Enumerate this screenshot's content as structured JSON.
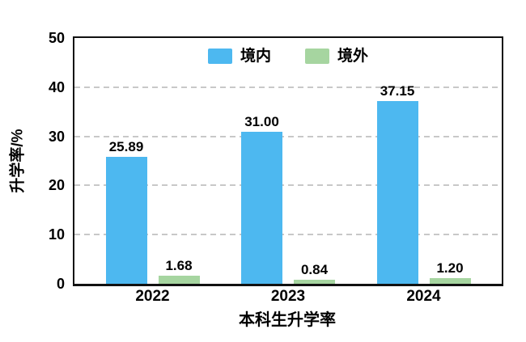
{
  "chart_data": {
    "type": "bar",
    "title": "",
    "xlabel": "本科生升学率",
    "ylabel": "升学率/%",
    "categories": [
      "2022",
      "2023",
      "2024"
    ],
    "series": [
      {
        "id": "domestic",
        "name": "境内",
        "color": "#4DB8F0",
        "values": [
          25.89,
          31.0,
          37.15
        ],
        "labels": [
          "25.89",
          "31.00",
          "37.15"
        ]
      },
      {
        "id": "overseas",
        "name": "境外",
        "color": "#A6D5A0",
        "values": [
          1.68,
          0.84,
          1.2
        ],
        "labels": [
          "1.68",
          "0.84",
          "1.20"
        ]
      }
    ],
    "ylim": [
      0,
      50
    ],
    "yticks": [
      "0",
      "10",
      "20",
      "30",
      "40",
      "50"
    ],
    "grid": {
      "horizontal": true,
      "style": "dashed",
      "color": "#C8C8C8",
      "at": [
        10,
        20,
        30,
        40
      ]
    },
    "legend": {
      "position": "top-center-inside"
    },
    "frame_color": "#111111",
    "background": "#FFFFFF",
    "text_color": "#000000"
  }
}
